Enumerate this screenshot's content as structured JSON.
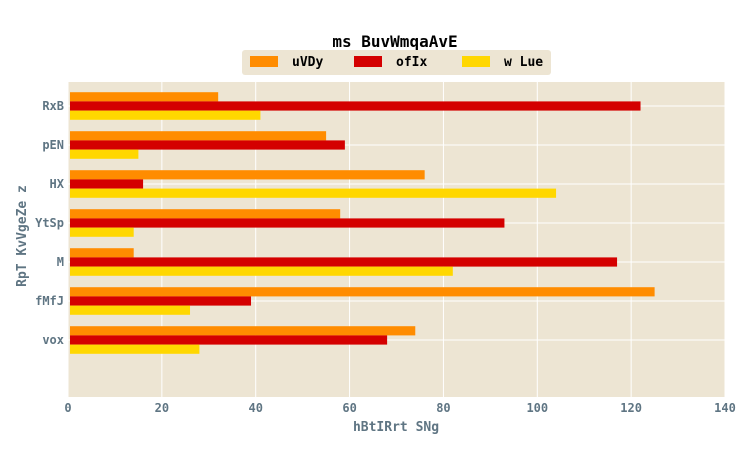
{
  "chart_data": {
    "type": "bar",
    "orientation": "horizontal",
    "title": "ms  BuvWmqaAvE",
    "xlabel": "hBtIRrt SNg",
    "ylabel": "RpT KvVgeZe z",
    "categories": [
      "RxB",
      "pEN",
      "HX",
      "YtSp",
      "M",
      "fMfJ",
      "vox"
    ],
    "series": [
      {
        "name": "uVDy",
        "color": "#ff8c00",
        "values": [
          32,
          55,
          76,
          58,
          14,
          125,
          74
        ]
      },
      {
        "name": "ofIx",
        "color": "#d40000",
        "values": [
          122,
          59,
          16,
          93,
          117,
          39,
          68
        ]
      },
      {
        "name": "w Lue",
        "color": "#ffd700",
        "values": [
          41,
          15,
          104,
          14,
          82,
          26,
          28
        ]
      }
    ],
    "xlim": [
      0,
      140
    ],
    "xticks": [
      "0",
      "20",
      "40",
      "60",
      "80",
      "100",
      "120",
      "140"
    ],
    "grid": true,
    "legend_position": "top-center",
    "plot_background": "#ede5d3"
  }
}
